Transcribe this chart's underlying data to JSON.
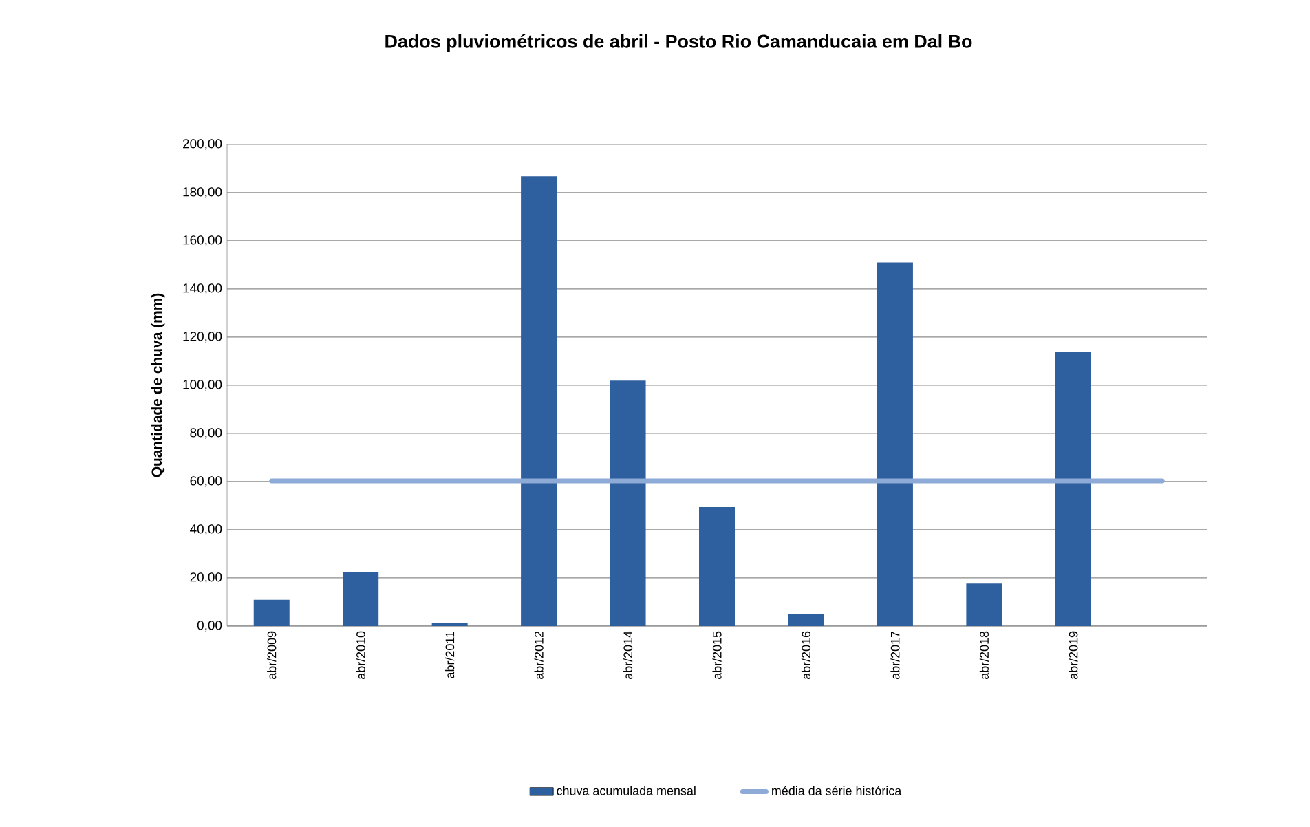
{
  "chart_data": {
    "type": "bar",
    "title": "Dados pluviométricos de abril - Posto Rio Camanducaia em Dal Bo",
    "ylabel": "Quantidade de chuva (mm)",
    "categories": [
      "abr/2009",
      "abr/2010",
      "abr/2011",
      "abr/2012",
      "abr/2014",
      "abr/2015",
      "abr/2016",
      "abr/2017",
      "abr/2018",
      "abr/2019",
      null
    ],
    "series": [
      {
        "name": "chuva acumulada mensal",
        "color": "#2e5f9f",
        "values": [
          10.9,
          22.3,
          1.1,
          186.8,
          101.9,
          49.4,
          5.0,
          151.0,
          17.6,
          113.7,
          null
        ]
      },
      {
        "name": "média da série histórica",
        "type": "line",
        "color": "#8eaad6",
        "values": [
          60.3,
          60.3,
          60.3,
          60.3,
          60.3,
          60.3,
          60.3,
          60.3,
          60.3,
          60.3,
          60.3
        ]
      }
    ],
    "ylim": [
      0,
      200
    ],
    "yticks": [
      {
        "value": 0,
        "label": "0,00"
      },
      {
        "value": 20,
        "label": "20,00"
      },
      {
        "value": 40,
        "label": "40,00"
      },
      {
        "value": 60,
        "label": "60,00"
      },
      {
        "value": 80,
        "label": "80,00"
      },
      {
        "value": 100,
        "label": "100,00"
      },
      {
        "value": 120,
        "label": "120,00"
      },
      {
        "value": 140,
        "label": "140,00"
      },
      {
        "value": 160,
        "label": "160,00"
      },
      {
        "value": 180,
        "label": "180,00"
      },
      {
        "value": 200,
        "label": "200,00"
      }
    ],
    "grid": "y",
    "legend": "bottom"
  }
}
